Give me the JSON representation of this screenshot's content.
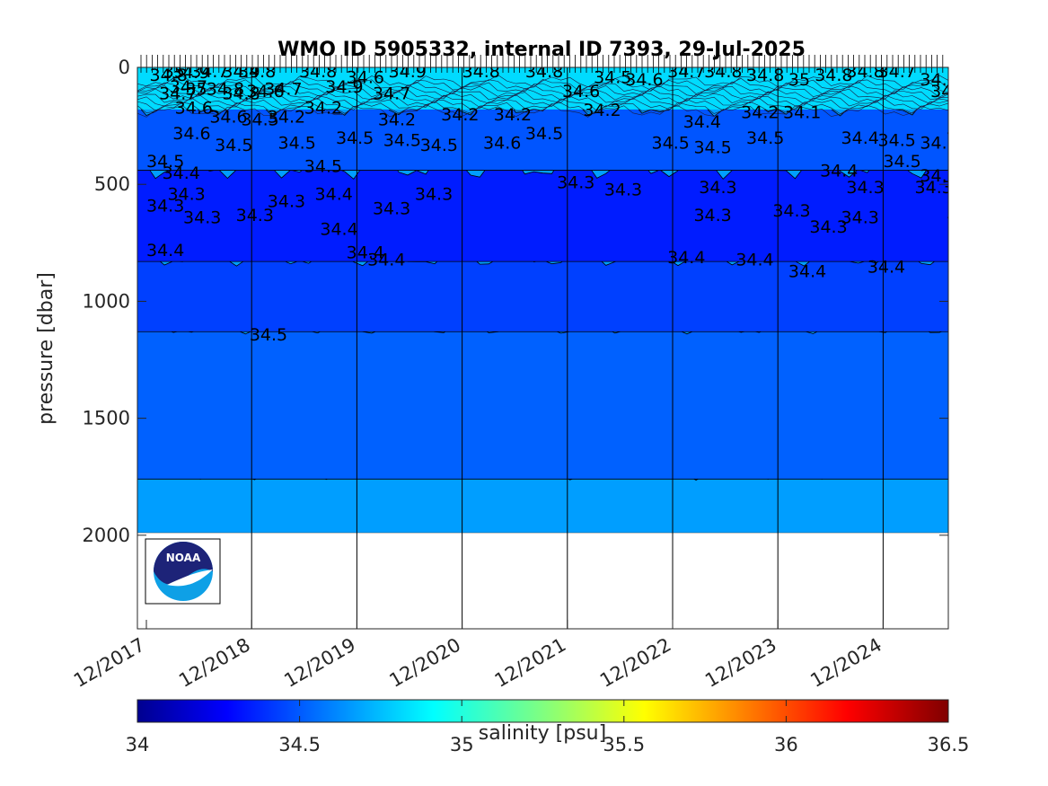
{
  "chart_data": {
    "type": "contour",
    "title": "WMO ID 5905332, internal ID 7393, 29-Jul-2025",
    "xlabel": "",
    "ylabel": "pressure [dbar]",
    "x_tick_labels": [
      "12/2017",
      "12/2018",
      "12/2019",
      "12/2020",
      "12/2021",
      "12/2022",
      "12/2023",
      "12/2024"
    ],
    "x_range": [
      "11/2017",
      "08/2025"
    ],
    "ylim": [
      0,
      2400
    ],
    "y_reversed": true,
    "y_ticks": [
      0,
      500,
      1000,
      1500,
      2000
    ],
    "grid": false,
    "vertical_lines_at": [
      "12/2018",
      "12/2019",
      "12/2020",
      "12/2021",
      "12/2022",
      "12/2023",
      "12/2024"
    ],
    "colorbar": {
      "label": "salinity [psu]",
      "limits": [
        34,
        36.5
      ],
      "ticks": [
        34,
        34.5,
        35,
        35.5,
        36,
        36.5
      ],
      "colormap": "jet"
    },
    "contour_levels_labeled": [
      "34.3",
      "34.4",
      "34.5",
      "34.6",
      "34.7",
      "34.8",
      "34.9",
      "35"
    ],
    "salinity_layers_approx": [
      {
        "pressure_range": [
          0,
          150
        ],
        "salinity": "34.7-35.0"
      },
      {
        "pressure_range": [
          150,
          450
        ],
        "salinity": "34.5-34.6"
      },
      {
        "pressure_range": [
          450,
          750
        ],
        "salinity": "34.3-34.4"
      },
      {
        "pressure_range": [
          750,
          1100
        ],
        "salinity": "34.4-34.5"
      },
      {
        "pressure_range": [
          1100,
          1750
        ],
        "salinity": "34.5-34.6"
      },
      {
        "pressure_range": [
          1750,
          2000
        ],
        "salinity": "34.6-34.7"
      }
    ],
    "inline_labels": [
      {
        "t": 0.03,
        "p": 30,
        "text": "34.8"
      },
      {
        "t": 0.16,
        "p": 15,
        "text": "35"
      },
      {
        "t": 0.22,
        "p": 80,
        "text": "34.7"
      },
      {
        "t": 0.24,
        "p": 20,
        "text": "34.9"
      },
      {
        "t": 0.12,
        "p": 110,
        "text": "34.7"
      },
      {
        "t": 0.27,
        "p": 170,
        "text": "34.6"
      },
      {
        "t": 0.42,
        "p": 15,
        "text": "34.7"
      },
      {
        "t": 0.37,
        "p": 90,
        "text": "35"
      },
      {
        "t": 0.57,
        "p": 90,
        "text": "34.8"
      },
      {
        "t": 0.72,
        "p": 15,
        "text": "34.9"
      },
      {
        "t": 0.72,
        "p": 110,
        "text": "34.8"
      },
      {
        "t": 0.87,
        "p": 15,
        "text": "34.8"
      },
      {
        "t": 0.95,
        "p": 100,
        "text": "34.6"
      },
      {
        "t": 1.12,
        "p": 90,
        "text": "34.7"
      },
      {
        "t": 1.45,
        "p": 15,
        "text": "34.8"
      },
      {
        "t": 1.7,
        "p": 80,
        "text": "34.9"
      },
      {
        "t": 1.9,
        "p": 40,
        "text": "34.6"
      },
      {
        "t": 2.3,
        "p": 15,
        "text": "34.9"
      },
      {
        "t": 2.15,
        "p": 110,
        "text": "34.7"
      },
      {
        "t": 3.0,
        "p": 15,
        "text": "34.8"
      },
      {
        "t": 3.6,
        "p": 15,
        "text": "34.8"
      },
      {
        "t": 3.95,
        "p": 100,
        "text": "34.6"
      },
      {
        "t": 4.25,
        "p": 40,
        "text": "34.5"
      },
      {
        "t": 4.55,
        "p": 50,
        "text": "34.6"
      },
      {
        "t": 4.95,
        "p": 15,
        "text": "34.7"
      },
      {
        "t": 5.3,
        "p": 15,
        "text": "34.8"
      },
      {
        "t": 5.7,
        "p": 30,
        "text": "34.8"
      },
      {
        "t": 6.1,
        "p": 50,
        "text": "35"
      },
      {
        "t": 6.35,
        "p": 30,
        "text": "34.8"
      },
      {
        "t": 6.65,
        "p": 15,
        "text": "34.8"
      },
      {
        "t": 6.95,
        "p": 15,
        "text": "34.7"
      },
      {
        "t": 7.35,
        "p": 50,
        "text": "34.8"
      },
      {
        "t": 7.45,
        "p": 100,
        "text": "34.6"
      },
      {
        "t": 0.6,
        "p": 210,
        "text": "34.6"
      },
      {
        "t": 0.9,
        "p": 220,
        "text": "34.5"
      },
      {
        "t": 1.15,
        "p": 210,
        "text": "34.2"
      },
      {
        "t": 1.5,
        "p": 170,
        "text": "34.2"
      },
      {
        "t": 2.2,
        "p": 220,
        "text": "34.2"
      },
      {
        "t": 2.8,
        "p": 200,
        "text": "34.2"
      },
      {
        "t": 3.3,
        "p": 200,
        "text": "34.2"
      },
      {
        "t": 4.15,
        "p": 180,
        "text": "34.2"
      },
      {
        "t": 5.1,
        "p": 230,
        "text": "34.4"
      },
      {
        "t": 5.65,
        "p": 190,
        "text": "34.2"
      },
      {
        "t": 6.05,
        "p": 190,
        "text": "34.1"
      },
      {
        "t": 0.25,
        "p": 280,
        "text": "34.6"
      },
      {
        "t": 0.65,
        "p": 330,
        "text": "34.5"
      },
      {
        "t": 1.25,
        "p": 320,
        "text": "34.5"
      },
      {
        "t": 1.8,
        "p": 300,
        "text": "34.5"
      },
      {
        "t": 2.25,
        "p": 310,
        "text": "34.5"
      },
      {
        "t": 2.6,
        "p": 330,
        "text": "34.5"
      },
      {
        "t": 3.2,
        "p": 320,
        "text": "34.6"
      },
      {
        "t": 3.6,
        "p": 280,
        "text": "34.5"
      },
      {
        "t": 4.8,
        "p": 320,
        "text": "34.5"
      },
      {
        "t": 5.2,
        "p": 340,
        "text": "34.5"
      },
      {
        "t": 5.7,
        "p": 300,
        "text": "34.5"
      },
      {
        "t": 6.6,
        "p": 300,
        "text": "34.4"
      },
      {
        "t": 6.95,
        "p": 310,
        "text": "34.5"
      },
      {
        "t": 7.35,
        "p": 320,
        "text": "34.6"
      },
      {
        "t": 7.6,
        "p": 260,
        "text": "34.6"
      },
      {
        "t": 0.0,
        "p": 400,
        "text": "34.5"
      },
      {
        "t": 0.15,
        "p": 450,
        "text": "34.4"
      },
      {
        "t": 1.5,
        "p": 420,
        "text": "34.5"
      },
      {
        "t": 6.4,
        "p": 440,
        "text": "34.4"
      },
      {
        "t": 7.0,
        "p": 400,
        "text": "34.5"
      },
      {
        "t": 7.35,
        "p": 460,
        "text": "34.4"
      },
      {
        "t": 0.2,
        "p": 540,
        "text": "34.3"
      },
      {
        "t": 1.15,
        "p": 570,
        "text": "34.3"
      },
      {
        "t": 1.6,
        "p": 540,
        "text": "34.4"
      },
      {
        "t": 2.55,
        "p": 540,
        "text": "34.3"
      },
      {
        "t": 3.9,
        "p": 490,
        "text": "34.3"
      },
      {
        "t": 4.35,
        "p": 520,
        "text": "34.3"
      },
      {
        "t": 5.25,
        "p": 510,
        "text": "34.3"
      },
      {
        "t": 6.65,
        "p": 510,
        "text": "34.3"
      },
      {
        "t": 7.3,
        "p": 510,
        "text": "34.3"
      },
      {
        "t": 0.0,
        "p": 590,
        "text": "34.3"
      },
      {
        "t": 0.35,
        "p": 640,
        "text": "34.3"
      },
      {
        "t": 0.85,
        "p": 630,
        "text": "34.3"
      },
      {
        "t": 2.15,
        "p": 600,
        "text": "34.3"
      },
      {
        "t": 5.2,
        "p": 630,
        "text": "34.3"
      },
      {
        "t": 5.95,
        "p": 610,
        "text": "34.3"
      },
      {
        "t": 6.3,
        "p": 680,
        "text": "34.3"
      },
      {
        "t": 6.6,
        "p": 640,
        "text": "34.3"
      },
      {
        "t": 7.6,
        "p": 620,
        "text": "34.4"
      },
      {
        "t": 1.65,
        "p": 690,
        "text": "34.4"
      },
      {
        "t": 0.0,
        "p": 780,
        "text": "34.4"
      },
      {
        "t": 1.9,
        "p": 790,
        "text": "34.4"
      },
      {
        "t": 2.1,
        "p": 820,
        "text": "34.4"
      },
      {
        "t": 4.95,
        "p": 810,
        "text": "34.4"
      },
      {
        "t": 5.6,
        "p": 820,
        "text": "34.4"
      },
      {
        "t": 6.1,
        "p": 870,
        "text": "34.4"
      },
      {
        "t": 6.85,
        "p": 850,
        "text": "34.4"
      },
      {
        "t": 0.98,
        "p": 1140,
        "text": "34.5"
      }
    ]
  },
  "logo": {
    "text": "NOAA",
    "colors": {
      "dark": "#1d2378",
      "light": "#0ea0e6"
    }
  }
}
